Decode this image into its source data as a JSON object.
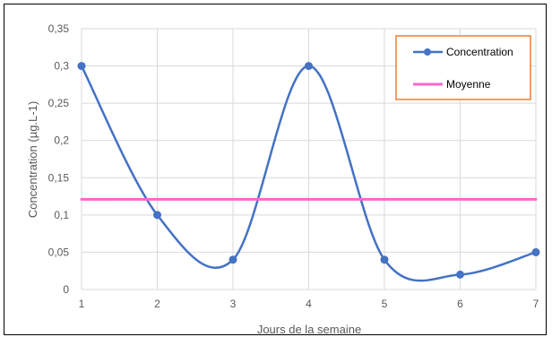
{
  "chart_data": {
    "type": "line",
    "x": [
      1,
      2,
      3,
      4,
      5,
      6,
      7
    ],
    "xlabel": "Jours de la semaine",
    "ylabel": "Concentration (µg.L-1)",
    "xlim": [
      1,
      7
    ],
    "ylim": [
      0,
      0.35
    ],
    "yticks": [
      0,
      0.05,
      0.1,
      0.15,
      0.2,
      0.25,
      0.3,
      0.35
    ],
    "ytick_labels": [
      "0",
      "0,05",
      "0,1",
      "0,15",
      "0,2",
      "0,25",
      "0,3",
      "0,35"
    ],
    "xtick_labels": [
      "1",
      "2",
      "3",
      "4",
      "5",
      "6",
      "7"
    ],
    "grid": true,
    "legend_position": "top-right",
    "series": [
      {
        "name": "Concentration",
        "values": [
          0.3,
          0.1,
          0.04,
          0.3,
          0.04,
          0.02,
          0.05
        ],
        "color": "#4472C4",
        "smooth": true,
        "markers": true
      },
      {
        "name": "Moyenne",
        "values": [
          0.121,
          0.121,
          0.121,
          0.121,
          0.121,
          0.121,
          0.121
        ],
        "color": "#FF66CC",
        "smooth": false,
        "markers": false
      }
    ]
  }
}
